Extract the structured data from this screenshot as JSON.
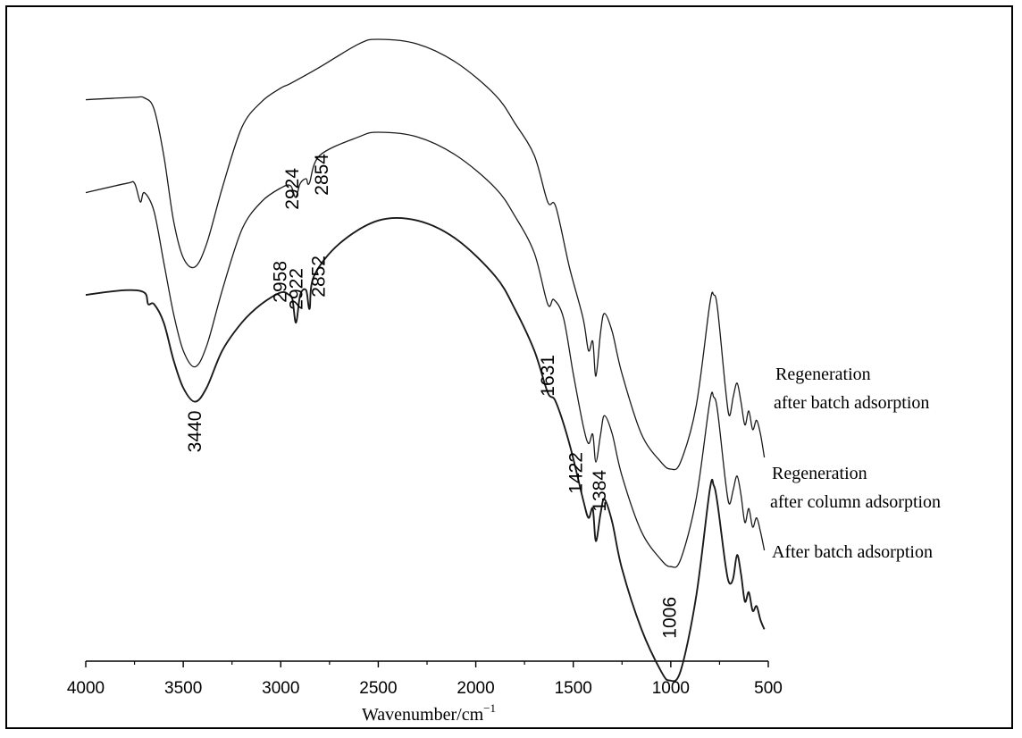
{
  "chart_data": {
    "type": "line",
    "title": "",
    "xlabel": "Wavenumber/cm",
    "xlabel_superscript": "−1",
    "ylabel": "",
    "xlim": [
      4000,
      500
    ],
    "x_reversed": true,
    "x_ticks": [
      "4000",
      "3500",
      "3000",
      "2500",
      "2000",
      "1500",
      "1000",
      "500"
    ],
    "grid": false,
    "line_color": "#1a1a1a",
    "series": [
      {
        "name": "Regeneration after batch adsorption",
        "label_lines": [
          "Regeneration",
          "after batch adsorption"
        ],
        "points": [
          [
            4000,
            0.92
          ],
          [
            3760,
            0.925
          ],
          [
            3700,
            0.924
          ],
          [
            3650,
            0.9
          ],
          [
            3600,
            0.8
          ],
          [
            3550,
            0.66
          ],
          [
            3500,
            0.58
          ],
          [
            3440,
            0.56
          ],
          [
            3380,
            0.61
          ],
          [
            3300,
            0.73
          ],
          [
            3200,
            0.86
          ],
          [
            3100,
            0.915
          ],
          [
            3000,
            0.945
          ],
          [
            2950,
            0.955
          ],
          [
            2800,
            0.99
          ],
          [
            2600,
            1.04
          ],
          [
            2500,
            1.05
          ],
          [
            2300,
            1.04
          ],
          [
            2100,
            1.0
          ],
          [
            1900,
            0.93
          ],
          [
            1800,
            0.87
          ],
          [
            1700,
            0.8
          ],
          [
            1631,
            0.7
          ],
          [
            1590,
            0.69
          ],
          [
            1520,
            0.56
          ],
          [
            1450,
            0.45
          ],
          [
            1422,
            0.38
          ],
          [
            1400,
            0.4
          ],
          [
            1384,
            0.325
          ],
          [
            1360,
            0.42
          ],
          [
            1340,
            0.46
          ],
          [
            1300,
            0.42
          ],
          [
            1250,
            0.33
          ],
          [
            1150,
            0.2
          ],
          [
            1050,
            0.14
          ],
          [
            1000,
            0.125
          ],
          [
            950,
            0.14
          ],
          [
            870,
            0.26
          ],
          [
            800,
            0.48
          ],
          [
            780,
            0.5
          ],
          [
            760,
            0.47
          ],
          [
            720,
            0.3
          ],
          [
            700,
            0.24
          ],
          [
            680,
            0.28
          ],
          [
            660,
            0.31
          ],
          [
            640,
            0.27
          ],
          [
            620,
            0.22
          ],
          [
            600,
            0.25
          ],
          [
            580,
            0.21
          ],
          [
            560,
            0.23
          ],
          [
            540,
            0.2
          ],
          [
            520,
            0.15
          ]
        ]
      },
      {
        "name": "Regeneration after column adsorption",
        "label_lines": [
          "Regeneration",
          "after column adsorption"
        ],
        "points": [
          [
            4000,
            0.72
          ],
          [
            3790,
            0.74
          ],
          [
            3750,
            0.74
          ],
          [
            3720,
            0.7
          ],
          [
            3700,
            0.72
          ],
          [
            3650,
            0.68
          ],
          [
            3600,
            0.57
          ],
          [
            3550,
            0.46
          ],
          [
            3500,
            0.38
          ],
          [
            3440,
            0.345
          ],
          [
            3380,
            0.39
          ],
          [
            3300,
            0.51
          ],
          [
            3200,
            0.64
          ],
          [
            3100,
            0.7
          ],
          [
            3000,
            0.73
          ],
          [
            2950,
            0.735
          ],
          [
            2924,
            0.71
          ],
          [
            2900,
            0.74
          ],
          [
            2870,
            0.75
          ],
          [
            2854,
            0.74
          ],
          [
            2800,
            0.8
          ],
          [
            2600,
            0.84
          ],
          [
            2500,
            0.85
          ],
          [
            2300,
            0.84
          ],
          [
            2100,
            0.8
          ],
          [
            1900,
            0.73
          ],
          [
            1800,
            0.67
          ],
          [
            1700,
            0.59
          ],
          [
            1631,
            0.48
          ],
          [
            1600,
            0.49
          ],
          [
            1550,
            0.45
          ],
          [
            1500,
            0.33
          ],
          [
            1450,
            0.22
          ],
          [
            1422,
            0.18
          ],
          [
            1400,
            0.2
          ],
          [
            1384,
            0.14
          ],
          [
            1360,
            0.2
          ],
          [
            1340,
            0.24
          ],
          [
            1300,
            0.2
          ],
          [
            1250,
            0.11
          ],
          [
            1150,
            -0.01
          ],
          [
            1050,
            -0.07
          ],
          [
            1000,
            -0.085
          ],
          [
            950,
            -0.07
          ],
          [
            870,
            0.06
          ],
          [
            800,
            0.27
          ],
          [
            780,
            0.28
          ],
          [
            760,
            0.25
          ],
          [
            720,
            0.1
          ],
          [
            700,
            0.05
          ],
          [
            680,
            0.08
          ],
          [
            660,
            0.11
          ],
          [
            640,
            0.07
          ],
          [
            620,
            0.01
          ],
          [
            600,
            0.04
          ],
          [
            580,
            0.0
          ],
          [
            560,
            0.02
          ],
          [
            540,
            -0.01
          ],
          [
            520,
            -0.05
          ]
        ]
      },
      {
        "name": "After batch adsorption",
        "label_lines": [
          "After batch adsorption"
        ],
        "points": [
          [
            4000,
            0.5
          ],
          [
            3800,
            0.51
          ],
          [
            3700,
            0.505
          ],
          [
            3680,
            0.48
          ],
          [
            3650,
            0.48
          ],
          [
            3600,
            0.44
          ],
          [
            3550,
            0.36
          ],
          [
            3500,
            0.3
          ],
          [
            3440,
            0.27
          ],
          [
            3380,
            0.3
          ],
          [
            3300,
            0.38
          ],
          [
            3200,
            0.44
          ],
          [
            3100,
            0.48
          ],
          [
            3000,
            0.505
          ],
          [
            2958,
            0.5
          ],
          [
            2940,
            0.49
          ],
          [
            2922,
            0.44
          ],
          [
            2900,
            0.5
          ],
          [
            2870,
            0.51
          ],
          [
            2852,
            0.47
          ],
          [
            2830,
            0.54
          ],
          [
            2700,
            0.61
          ],
          [
            2500,
            0.66
          ],
          [
            2300,
            0.66
          ],
          [
            2100,
            0.62
          ],
          [
            1900,
            0.54
          ],
          [
            1800,
            0.47
          ],
          [
            1700,
            0.38
          ],
          [
            1631,
            0.29
          ],
          [
            1590,
            0.27
          ],
          [
            1520,
            0.18
          ],
          [
            1450,
            0.06
          ],
          [
            1422,
            0.02
          ],
          [
            1400,
            0.04
          ],
          [
            1384,
            -0.03
          ],
          [
            1360,
            0.03
          ],
          [
            1340,
            0.06
          ],
          [
            1300,
            0.01
          ],
          [
            1250,
            -0.09
          ],
          [
            1150,
            -0.22
          ],
          [
            1050,
            -0.31
          ],
          [
            1006,
            -0.33
          ],
          [
            950,
            -0.31
          ],
          [
            870,
            -0.15
          ],
          [
            800,
            0.08
          ],
          [
            780,
            0.09
          ],
          [
            760,
            0.05
          ],
          [
            720,
            -0.08
          ],
          [
            700,
            -0.12
          ],
          [
            680,
            -0.11
          ],
          [
            660,
            -0.06
          ],
          [
            640,
            -0.1
          ],
          [
            620,
            -0.16
          ],
          [
            600,
            -0.14
          ],
          [
            580,
            -0.18
          ],
          [
            560,
            -0.17
          ],
          [
            540,
            -0.2
          ],
          [
            520,
            -0.22
          ]
        ]
      }
    ],
    "peak_labels": [
      {
        "text": "3440",
        "series": 2,
        "x": 3440
      },
      {
        "text": "2958",
        "series": 2,
        "x": 2958
      },
      {
        "text": "2922",
        "series": 2,
        "x": 2922
      },
      {
        "text": "2852",
        "series": 2,
        "x": 2852
      },
      {
        "text": "2924",
        "series": 1,
        "x": 2924
      },
      {
        "text": "2854",
        "series": 1,
        "x": 2854
      },
      {
        "text": "1631",
        "series": 2,
        "x": 1631
      },
      {
        "text": "1422",
        "series": 2,
        "x": 1422
      },
      {
        "text": "1384",
        "series": 2,
        "x": 1384
      },
      {
        "text": "1006",
        "series": 2,
        "x": 1006
      }
    ]
  }
}
